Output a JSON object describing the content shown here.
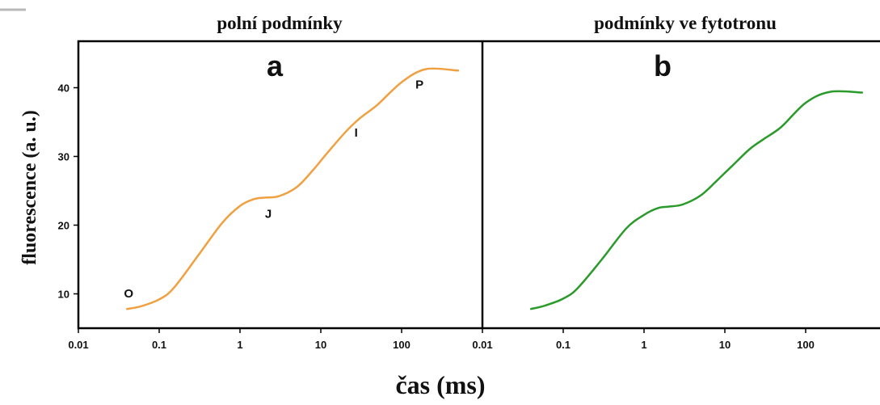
{
  "chart_data": {
    "type": "line",
    "xlabel": "čas (ms)",
    "ylabel": "fluorescence (a. u.)",
    "xscale": "log",
    "xlim": [
      0.01,
      600
    ],
    "ylim": [
      5,
      46
    ],
    "x_ticks": [
      "0.01",
      "0.1",
      "1",
      "10",
      "100"
    ],
    "y_ticks": [
      "10",
      "20",
      "30",
      "40"
    ],
    "panels": [
      {
        "title": "polní podmínky",
        "letter": "a",
        "color": "#f0a040",
        "x": [
          0.04,
          0.06,
          0.1,
          0.15,
          0.3,
          0.6,
          1,
          1.5,
          2,
          3,
          5,
          8,
          12,
          20,
          30,
          50,
          100,
          200,
          500
        ],
        "y": [
          7.8,
          8.2,
          9.2,
          10.8,
          15.5,
          20.3,
          22.8,
          23.8,
          24,
          24.2,
          25.5,
          28,
          30.5,
          33.5,
          35.5,
          37.5,
          40.8,
          42.7,
          42.5
        ],
        "point_labels": [
          {
            "text": "O",
            "x": 0.04
          },
          {
            "text": "J",
            "x": 2
          },
          {
            "text": "I",
            "x": 30
          },
          {
            "text": "P",
            "x": 200
          }
        ]
      },
      {
        "title": "podmínky ve fytotronu",
        "letter": "b",
        "color": "#2a9a2a",
        "x": [
          0.04,
          0.06,
          0.1,
          0.15,
          0.3,
          0.6,
          1,
          1.5,
          2,
          3,
          5,
          8,
          12,
          20,
          30,
          50,
          100,
          200,
          500
        ],
        "y": [
          7.8,
          8.3,
          9.3,
          10.8,
          15,
          19.5,
          21.5,
          22.5,
          22.7,
          23,
          24.3,
          26.5,
          28.5,
          31,
          32.5,
          34.3,
          37.8,
          39.4,
          39.3
        ]
      }
    ]
  }
}
